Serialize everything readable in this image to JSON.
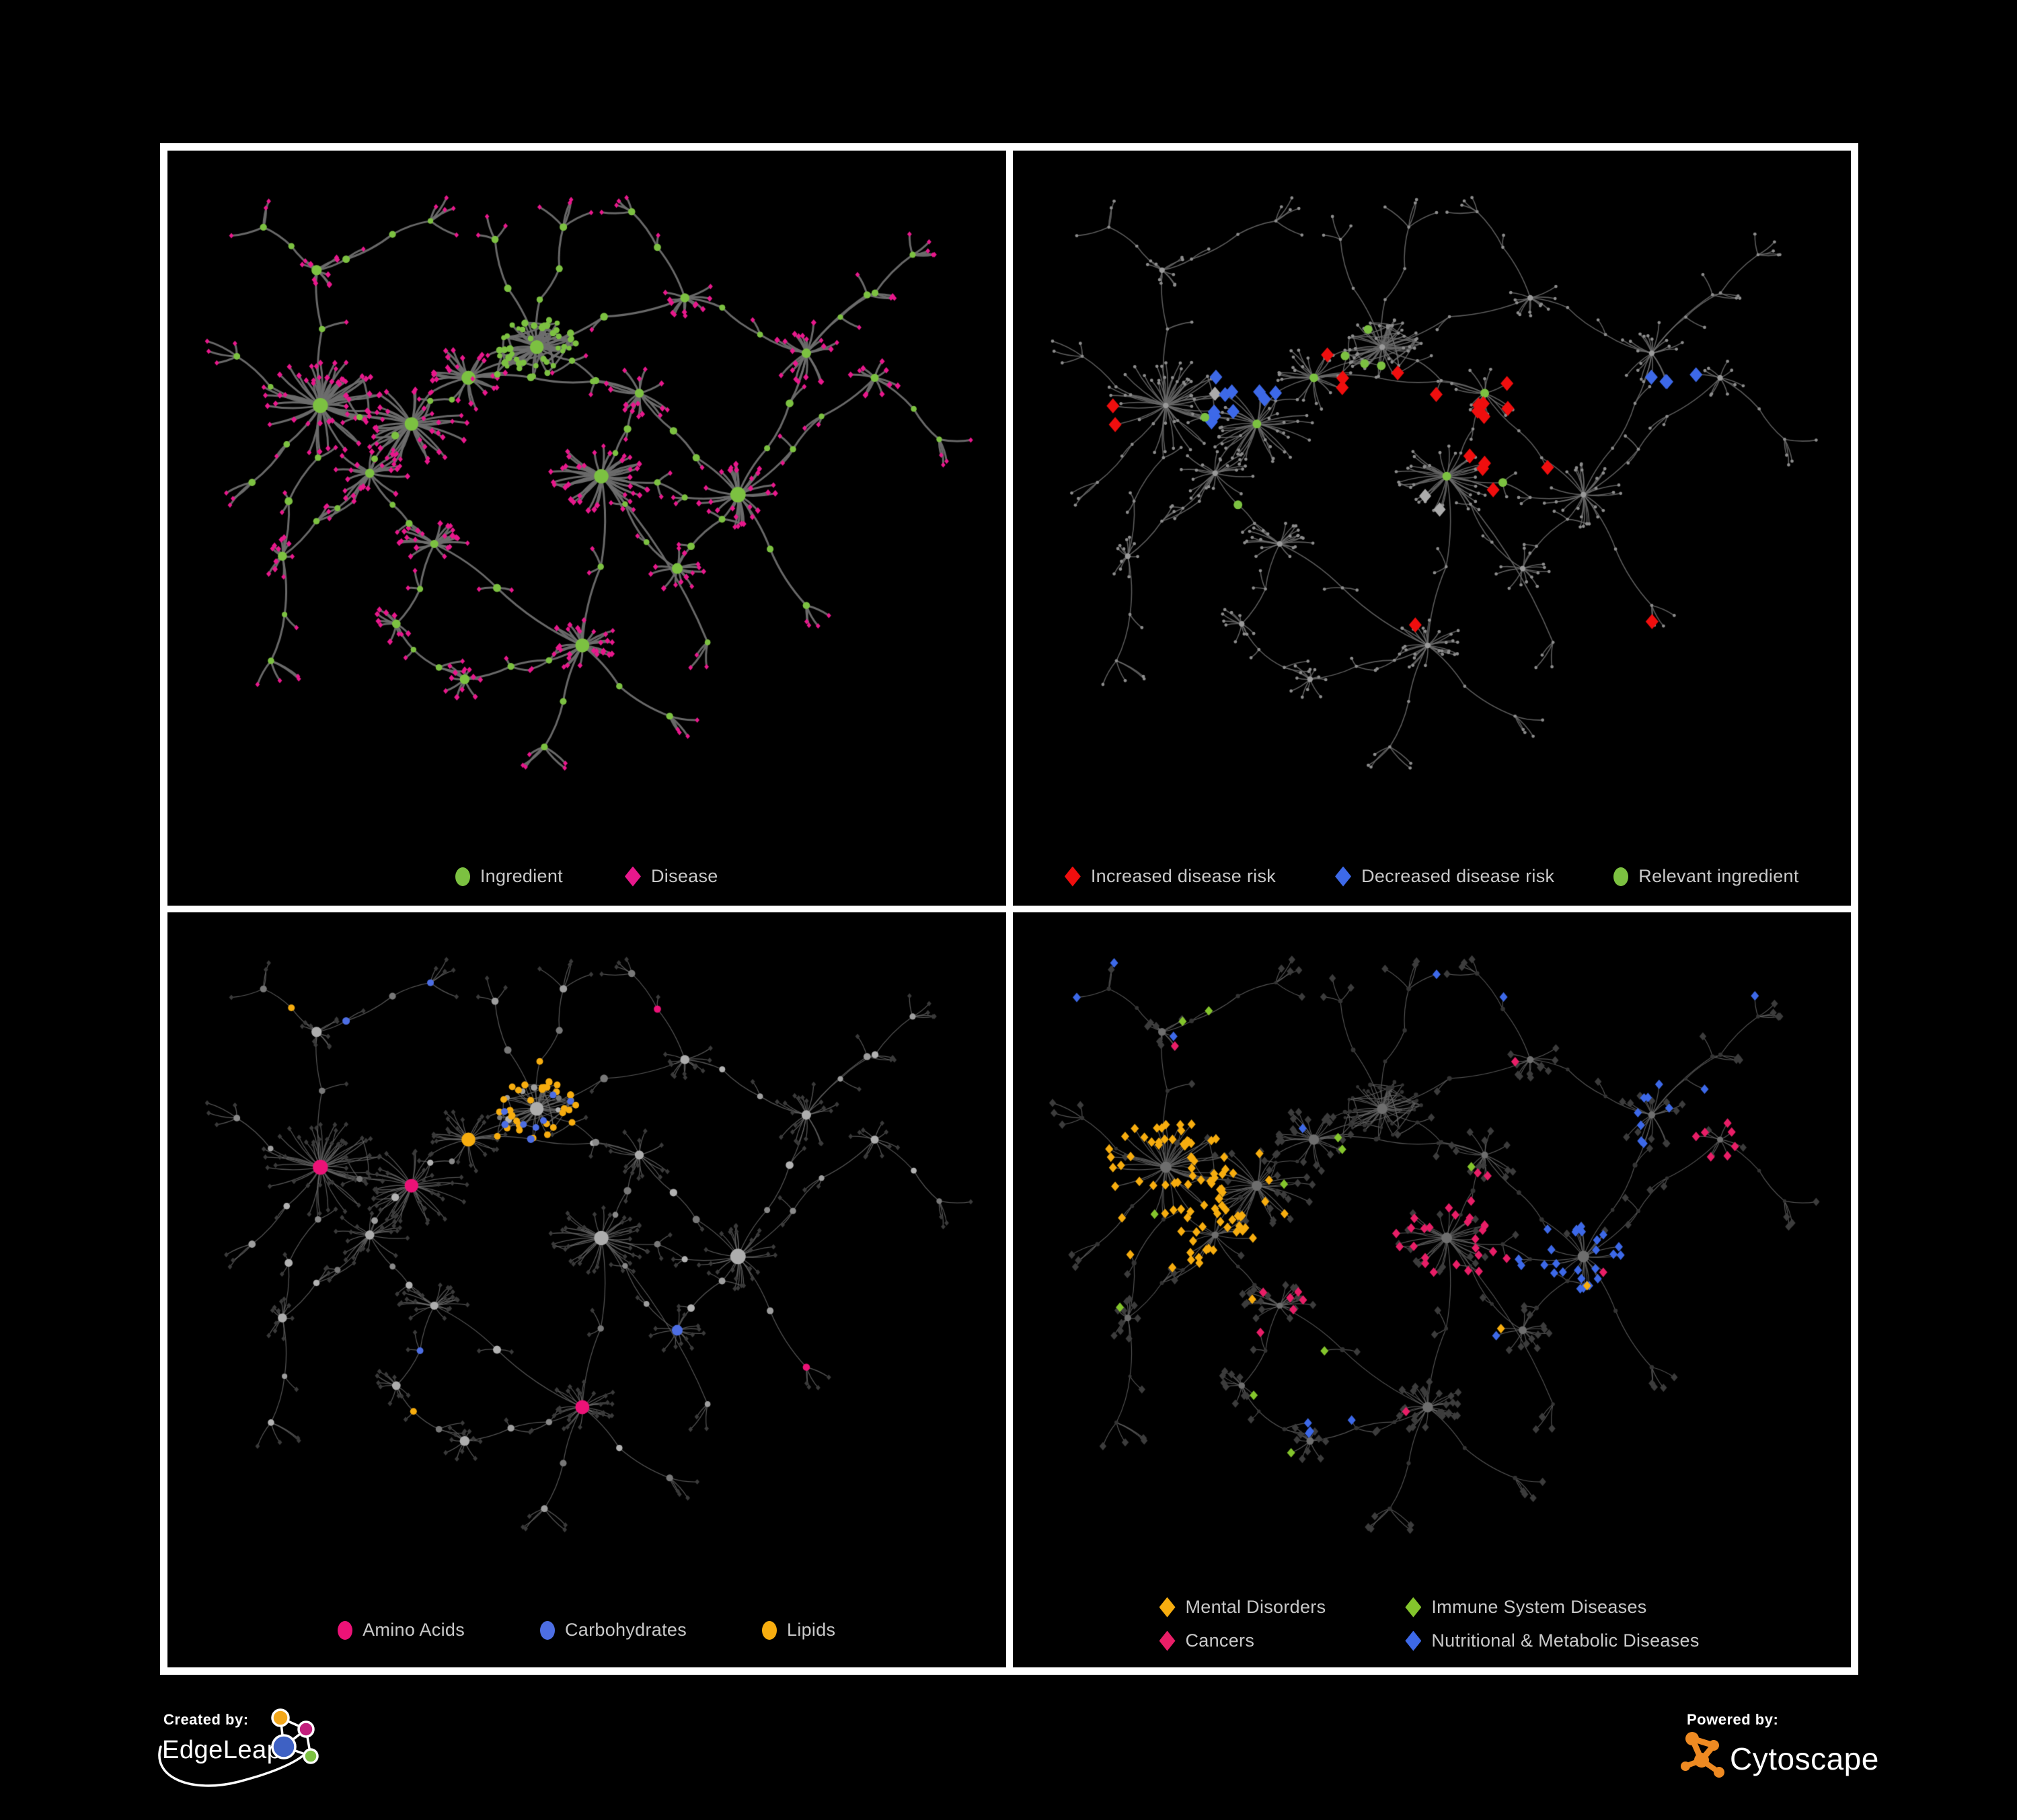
{
  "palette": {
    "green": "#7CC141",
    "magenta": "#E8188C",
    "red": "#F00E0E",
    "blue": "#3D69E8",
    "silver": "#ABABAB",
    "magenta2": "#EC1277",
    "blue2": "#4D6EE3",
    "orange": "#F7AD0F",
    "pink4": "#E81E67",
    "green4": "#84C52C",
    "dark_diamond": "#3A3A3A",
    "gray_node": "#9A9A9A",
    "legend_text": "#C9C9C9",
    "frame": "#FFFFFF",
    "background": "#000000",
    "cytoscape_orange": "#EE8A22"
  },
  "panels": [
    {
      "name": "ingredient-disease",
      "mode": "type",
      "legend_layout": "row",
      "legend_class": "gap-a",
      "style": {
        "edge": "#6E6E6E",
        "edgeWidth": 3.0,
        "edgeAlpha": 0.95
      },
      "legend": [
        {
          "shape": "circle",
          "color": "#7CC141",
          "label": "Ingredient"
        },
        {
          "shape": "diamond",
          "color": "#E8188C",
          "label": "Disease"
        }
      ]
    },
    {
      "name": "disease-risk",
      "mode": "risk",
      "legend_layout": "row",
      "legend_class": "gap-b",
      "style": {
        "edge": "#6A6A6A",
        "edgeWidth": 1.6,
        "edgeAlpha": 0.85
      },
      "legend": [
        {
          "shape": "diamond",
          "color": "#F00E0E",
          "label": "Increased disease risk"
        },
        {
          "shape": "diamond",
          "color": "#3D69E8",
          "label": "Decreased disease risk"
        },
        {
          "shape": "circle",
          "color": "#7CC141",
          "label": "Relevant ingredient"
        }
      ]
    },
    {
      "name": "ingredient-class",
      "mode": "ingclass",
      "legend_layout": "row",
      "legend_class": "gap-c",
      "style": {
        "edge": "#666666",
        "edgeWidth": 1.3,
        "edgeAlpha": 0.8
      },
      "legend": [
        {
          "shape": "circle",
          "color": "#EC1277",
          "label": "Amino Acids"
        },
        {
          "shape": "circle",
          "color": "#4D6EE3",
          "label": "Carbohydrates"
        },
        {
          "shape": "circle",
          "color": "#F7AD0F",
          "label": "Lipids"
        }
      ]
    },
    {
      "name": "disease-class",
      "mode": "disclass",
      "legend_layout": "grid",
      "legend_class": "",
      "style": {
        "edge": "#606060",
        "edgeWidth": 1.2,
        "edgeAlpha": 0.85
      },
      "legend": [
        {
          "shape": "diamond",
          "color": "#F7AD0F",
          "label": "Mental Disorders"
        },
        {
          "shape": "diamond",
          "color": "#84C52C",
          "label": "Immune System Diseases"
        },
        {
          "shape": "diamond",
          "color": "#E81E67",
          "label": "Cancers"
        },
        {
          "shape": "diamond",
          "color": "#3D69E8",
          "label": "Nutritional & Metabolic Diseases"
        }
      ]
    }
  ],
  "footer": {
    "created_by": "Created by:",
    "brand": "EdgeLeap",
    "powered_by": "Powered by:",
    "engine": "Cytoscape"
  },
  "network": {
    "seed": 20240217,
    "hubs": [
      [
        0.15,
        0.375,
        52,
        0.085,
        "d"
      ],
      [
        0.27,
        0.405,
        38,
        0.075,
        "d"
      ],
      [
        0.215,
        0.485,
        22,
        0.055,
        "d"
      ],
      [
        0.345,
        0.33,
        26,
        0.06,
        "d"
      ],
      [
        0.435,
        0.28,
        44,
        0.052,
        "i"
      ],
      [
        0.52,
        0.49,
        38,
        0.068,
        "d"
      ],
      [
        0.3,
        0.6,
        22,
        0.05,
        "d"
      ],
      [
        0.495,
        0.765,
        28,
        0.048,
        "d"
      ],
      [
        0.34,
        0.82,
        11,
        0.034,
        "d"
      ],
      [
        0.7,
        0.52,
        26,
        0.058,
        "d"
      ],
      [
        0.79,
        0.29,
        20,
        0.055,
        "d"
      ],
      [
        0.63,
        0.2,
        12,
        0.04,
        "d"
      ],
      [
        0.88,
        0.33,
        10,
        0.034,
        "d"
      ],
      [
        0.145,
        0.155,
        10,
        0.038,
        "d"
      ],
      [
        0.1,
        0.62,
        11,
        0.038,
        "d"
      ],
      [
        0.62,
        0.64,
        13,
        0.04,
        "d"
      ],
      [
        0.25,
        0.73,
        10,
        0.034,
        "d"
      ],
      [
        0.57,
        0.355,
        16,
        0.048,
        "d"
      ]
    ],
    "links": [
      [
        0,
        1
      ],
      [
        1,
        3
      ],
      [
        3,
        4
      ],
      [
        1,
        2
      ],
      [
        2,
        6
      ],
      [
        3,
        17
      ],
      [
        17,
        5
      ],
      [
        4,
        17
      ],
      [
        5,
        9
      ],
      [
        9,
        10
      ],
      [
        10,
        11
      ],
      [
        11,
        4
      ],
      [
        9,
        12
      ],
      [
        5,
        7
      ],
      [
        6,
        7
      ],
      [
        7,
        8
      ],
      [
        6,
        16
      ],
      [
        14,
        0
      ],
      [
        13,
        0
      ],
      [
        5,
        15
      ],
      [
        15,
        9
      ],
      [
        2,
        14
      ],
      [
        16,
        8
      ],
      [
        17,
        9
      ]
    ],
    "arms": [
      [
        13,
        0.295,
        0.075,
        3,
        5
      ],
      [
        4,
        0.47,
        0.085,
        3,
        4
      ],
      [
        11,
        0.56,
        0.06,
        2,
        4
      ],
      [
        10,
        0.93,
        0.13,
        3,
        5
      ],
      [
        12,
        0.965,
        0.43,
        2,
        4
      ],
      [
        10,
        0.87,
        0.195,
        1,
        3
      ],
      [
        0,
        0.04,
        0.295,
        2,
        4
      ],
      [
        0,
        0.06,
        0.5,
        2,
        3
      ],
      [
        14,
        0.085,
        0.79,
        2,
        4
      ],
      [
        7,
        0.445,
        0.93,
        2,
        5
      ],
      [
        7,
        0.61,
        0.88,
        2,
        4
      ],
      [
        9,
        0.79,
        0.7,
        2,
        4
      ],
      [
        13,
        0.075,
        0.085,
        2,
        3
      ],
      [
        4,
        0.38,
        0.105,
        2,
        3
      ],
      [
        5,
        0.66,
        0.76,
        1,
        3
      ]
    ],
    "p2": {
      "relevantBand": [
        0.16,
        0.62,
        0.22,
        0.56
      ],
      "relevantP": 0.2,
      "clusterP": 0.1,
      "hubP": 0.45,
      "redBand": [
        0.36,
        0.66,
        0.27,
        0.52
      ],
      "redP": 0.16,
      "redZones": [
        [
          0.48,
          0.6,
          0.05,
          0.5
        ],
        [
          0.5,
          0.7,
          0.04,
          0.4
        ],
        [
          0.755,
          0.735,
          0.05,
          0.6
        ],
        [
          0.085,
          0.4,
          0.03,
          0.9
        ]
      ],
      "blueZones": [
        [
          0.245,
          0.375,
          0.055,
          0.45
        ],
        [
          0.82,
          0.33,
          0.035,
          0.9
        ]
      ],
      "silverZones": [
        [
          0.34,
          0.52,
          0.03,
          0.6
        ],
        [
          0.505,
          0.545,
          0.045,
          0.35
        ],
        [
          0.6,
          0.42,
          0.035,
          0.3
        ],
        [
          0.225,
          0.33,
          0.035,
          0.3
        ]
      ],
      "silverP": 0.012
    },
    "p3": {
      "carbZones": [
        [
          0.445,
          0.3,
          0.055,
          0.2
        ],
        [
          0.55,
          0.46,
          0.04,
          0.3
        ],
        [
          0.05,
          0.33,
          0.03,
          0.7
        ]
      ],
      "carbP": 0.012,
      "lipidZones": [
        [
          0.435,
          0.275,
          0.075,
          0.8
        ],
        [
          0.4,
          0.37,
          0.05,
          0.35
        ],
        [
          0.47,
          0.455,
          0.04,
          0.45
        ]
      ],
      "lipidP": 0.035,
      "aminoP": 0.05,
      "aminoPeriphP": 0.09
    },
    "p4": {
      "mentalZones": [
        [
          0.165,
          0.415,
          0.125,
          0.88
        ],
        [
          0.275,
          0.4,
          0.06,
          0.3
        ]
      ],
      "mentalP": 0.01,
      "cancerZones": [
        [
          0.5,
          0.5,
          0.105,
          0.6
        ],
        [
          0.565,
          0.44,
          0.06,
          0.5
        ],
        [
          0.89,
          0.335,
          0.05,
          0.8
        ],
        [
          0.3,
          0.615,
          0.045,
          0.3
        ]
      ],
      "cancerP": 0.012,
      "nutriZones": [
        [
          0.685,
          0.545,
          0.075,
          0.65
        ],
        [
          0.775,
          0.27,
          0.095,
          0.5
        ],
        [
          0.845,
          0.225,
          0.05,
          0.55
        ],
        [
          0.36,
          0.765,
          0.05,
          0.45
        ],
        [
          0.57,
          0.2,
          0.05,
          0.3
        ]
      ],
      "nutriP": 0.02,
      "nutriTopP": 0.22,
      "immuneP": 0.022
    }
  }
}
